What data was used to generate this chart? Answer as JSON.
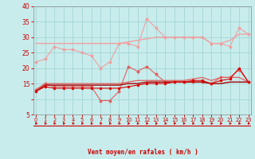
{
  "x": [
    0,
    1,
    2,
    3,
    4,
    5,
    6,
    7,
    8,
    9,
    10,
    11,
    12,
    13,
    14,
    15,
    16,
    17,
    18,
    19,
    20,
    21,
    22,
    23
  ],
  "line_lpink_wavy": [
    22,
    23,
    27,
    26,
    26,
    25,
    24,
    20,
    22,
    28,
    28,
    27,
    36,
    33,
    30,
    30,
    30,
    30,
    30,
    28,
    28,
    27,
    33,
    31
  ],
  "line_lpink_flat": [
    28,
    28,
    28,
    28,
    28,
    28,
    28,
    28,
    28,
    28,
    28.5,
    29,
    29.5,
    30,
    30,
    30,
    30,
    30,
    30,
    28,
    28,
    29,
    31,
    31
  ],
  "line_mpink_wavy": [
    13,
    15,
    14,
    14,
    14,
    14,
    14,
    9.5,
    9.5,
    12.5,
    20.5,
    19,
    20.5,
    18,
    15.5,
    15.5,
    15.5,
    15.5,
    15.5,
    15,
    17,
    17,
    19.5,
    15.5
  ],
  "line_mpink_flat": [
    13,
    15,
    15,
    15,
    15,
    15,
    15,
    15,
    15,
    15,
    15.5,
    16,
    16,
    16,
    16,
    16,
    16,
    16.5,
    17,
    16,
    17,
    17,
    17,
    15.5
  ],
  "line_red_wavy": [
    12.5,
    14,
    13.5,
    13.5,
    13.5,
    13.5,
    13.5,
    13.5,
    13.5,
    13.5,
    14,
    14.5,
    15,
    15,
    15,
    15.5,
    15.5,
    16,
    16,
    15,
    16,
    16.5,
    20,
    15.5
  ],
  "line_darkred_flat": [
    12.5,
    14.5,
    14.5,
    14.5,
    14.5,
    14.5,
    14.5,
    14.5,
    14.5,
    14.5,
    15,
    15,
    15.5,
    15.5,
    15.5,
    15.5,
    15.5,
    15.5,
    15.5,
    15,
    15,
    15.5,
    15.5,
    15.5
  ],
  "color_light_pink": "#F0A0A0",
  "color_med_pink": "#E06060",
  "color_red": "#DD0000",
  "color_dark_red": "#AA0000",
  "bg_color": "#C8ECEC",
  "grid_color": "#A8D8D8",
  "xlabel": "Vent moyen/en rafales ( km/h )",
  "ylim": [
    5,
    40
  ],
  "xlim": [
    -0.3,
    23.3
  ]
}
